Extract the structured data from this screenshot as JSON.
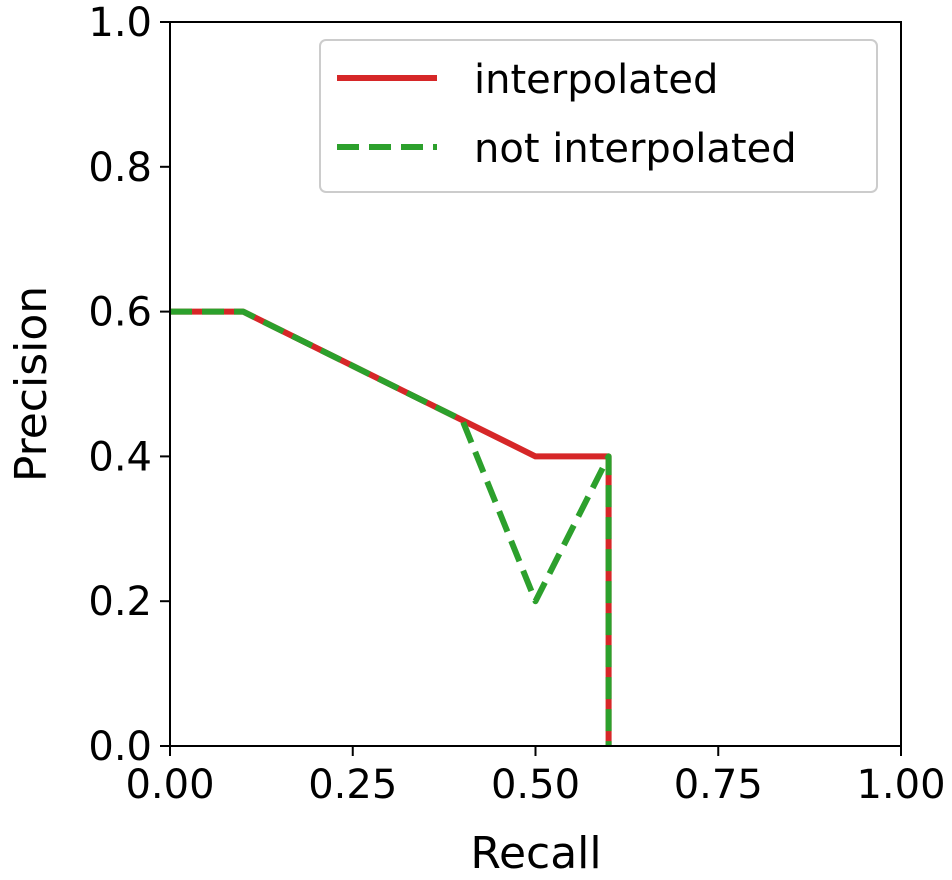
{
  "chart_data": {
    "type": "line",
    "title": "",
    "xlabel": "Recall",
    "ylabel": "Precision",
    "xlim": [
      0.0,
      1.0
    ],
    "ylim": [
      0.0,
      1.0
    ],
    "xticks": [
      "0.00",
      "0.25",
      "0.50",
      "0.75",
      "1.00"
    ],
    "yticks": [
      "0.0",
      "0.2",
      "0.4",
      "0.6",
      "0.8",
      "1.0"
    ],
    "grid": false,
    "legend_position": "top-right",
    "series": [
      {
        "name": "interpolated",
        "color": "#d62728",
        "style": "solid",
        "points": [
          [
            0.0,
            0.6
          ],
          [
            0.1,
            0.6
          ],
          [
            0.5,
            0.4
          ],
          [
            0.6,
            0.4
          ],
          [
            0.6,
            0.0
          ]
        ]
      },
      {
        "name": "not interpolated",
        "color": "#2ca02c",
        "style": "dashed",
        "points": [
          [
            0.0,
            0.6
          ],
          [
            0.1,
            0.6
          ],
          [
            0.4,
            0.45
          ],
          [
            0.5,
            0.2
          ],
          [
            0.6,
            0.4
          ],
          [
            0.6,
            0.0
          ]
        ]
      }
    ]
  }
}
